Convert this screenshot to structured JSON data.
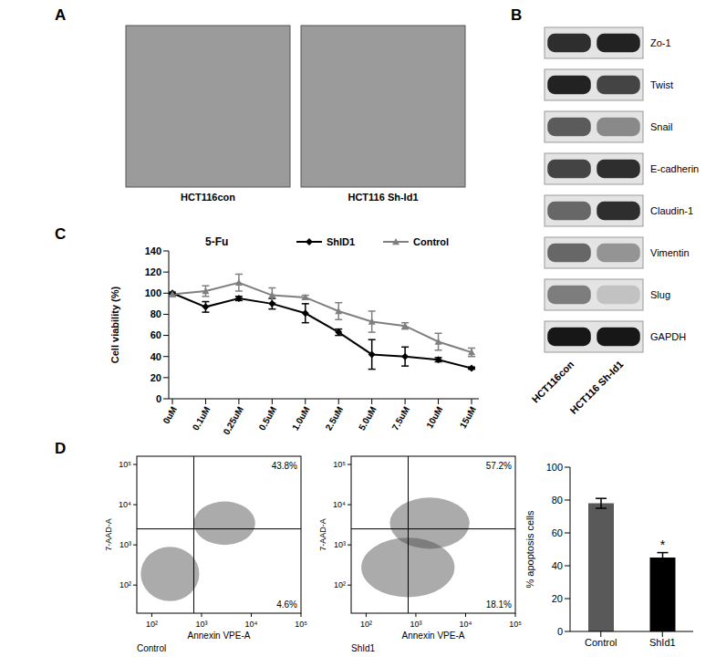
{
  "panels": [
    "A",
    "B",
    "C",
    "D"
  ],
  "micrographs": {
    "labels": [
      "HCT116con",
      "HCT116 Sh-Id1"
    ]
  },
  "western_blot": {
    "lanes": [
      "HCT116con",
      "HCT116 Sh-Id1"
    ],
    "proteins": [
      {
        "name": "Zo-1",
        "intensity": [
          0.8,
          0.85
        ]
      },
      {
        "name": "Twist",
        "intensity": [
          0.85,
          0.7
        ]
      },
      {
        "name": "Snail",
        "intensity": [
          0.6,
          0.4
        ]
      },
      {
        "name": "E-cadherin",
        "intensity": [
          0.7,
          0.8
        ]
      },
      {
        "name": "Claudin-1",
        "intensity": [
          0.55,
          0.8
        ]
      },
      {
        "name": "Vimentin",
        "intensity": [
          0.55,
          0.35
        ]
      },
      {
        "name": "Slug",
        "intensity": [
          0.45,
          0.15
        ]
      },
      {
        "name": "GAPDH",
        "intensity": [
          0.9,
          0.9
        ]
      }
    ]
  },
  "chart_data": [
    {
      "type": "line",
      "title": "5-Fu",
      "y_label": "Cell viability (%)",
      "categories": [
        "0uM",
        "0.1uM",
        "0.25uM",
        "0.5uM",
        "1.0uM",
        "2.5uM",
        "5.0uM",
        "7.5uM",
        "10uM",
        "15uM"
      ],
      "ylim": [
        0,
        140
      ],
      "yticks": [
        0,
        20,
        40,
        60,
        80,
        100,
        120,
        140
      ],
      "legend": "top right",
      "series": [
        {
          "name": "ShID1",
          "color": "#000000",
          "marker": "diamond",
          "values": [
            100,
            87,
            95,
            90,
            81,
            63,
            42,
            40,
            37,
            29
          ],
          "errors": [
            1,
            5,
            2,
            5,
            9,
            3,
            14,
            9,
            2,
            1
          ]
        },
        {
          "name": "Control",
          "color": "#7f7f7f",
          "marker": "triangle",
          "values": [
            99,
            102,
            110,
            98,
            96,
            83,
            73,
            69,
            54,
            44
          ],
          "errors": [
            2,
            5,
            8,
            7,
            2,
            8,
            10,
            3,
            8,
            4
          ]
        }
      ]
    },
    {
      "type": "bar",
      "y_label": "% apoptosis cells",
      "categories": [
        "Control",
        "ShId1"
      ],
      "values": [
        78,
        45
      ],
      "errors": [
        3,
        3
      ],
      "colors": [
        "#595959",
        "#000000"
      ],
      "ylim": [
        0,
        100
      ],
      "yticks": [
        0,
        20,
        40,
        60,
        80,
        100
      ],
      "annotations": [
        {
          "category": "ShId1",
          "text": "*"
        }
      ]
    }
  ],
  "flow_cytometry": {
    "x_label": "Annexin VPE-A",
    "y_label": "7-AAD-A",
    "log": true,
    "xlim": [
      50,
      100000
    ],
    "ylim": [
      20,
      160000
    ],
    "xticks": [
      {
        "value": 100,
        "label": "10²"
      },
      {
        "value": 1000,
        "label": "10³"
      },
      {
        "value": 10000,
        "label": "10⁴"
      },
      {
        "value": 100000,
        "label": "10⁵"
      }
    ],
    "yticks": [
      {
        "value": 100,
        "label": "10²"
      },
      {
        "value": 1000,
        "label": "10³"
      },
      {
        "value": 10000,
        "label": "10⁴"
      },
      {
        "value": 100000,
        "label": "10⁵"
      }
    ],
    "gates": {
      "x": 700,
      "y": 2500
    },
    "plots": [
      {
        "name": "Control",
        "upper_right": {
          "value": 43.8,
          "label": "43.8%"
        },
        "lower_right": {
          "value": 4.6,
          "label": "4.6%"
        },
        "populations": [
          {
            "x_range": [
              60,
              900
            ],
            "y_range": [
              40,
              900
            ]
          },
          {
            "x_range": [
              700,
              12000
            ],
            "y_range": [
              1000,
              12000
            ]
          }
        ]
      },
      {
        "name": "ShId1",
        "upper_right": {
          "value": 57.2,
          "label": "57.2%"
        },
        "lower_right": {
          "value": 18.1,
          "label": "18.1%"
        },
        "populations": [
          {
            "x_range": [
              300,
              12000
            ],
            "y_range": [
              800,
              15000
            ]
          },
          {
            "x_range": [
              80,
              6000
            ],
            "y_range": [
              50,
              1500
            ]
          }
        ]
      }
    ]
  }
}
